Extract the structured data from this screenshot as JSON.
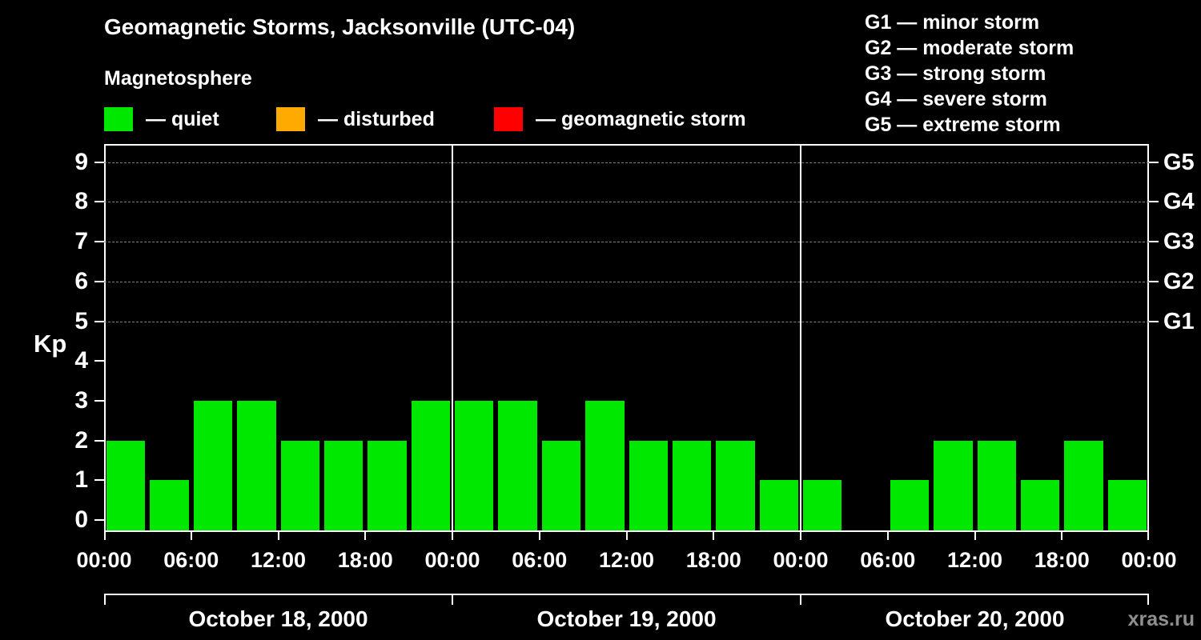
{
  "title": "Geomagnetic Storms, Jacksonville (UTC-04)",
  "legend": {
    "heading": "Magnetosphere",
    "items": [
      {
        "name": "quiet",
        "label": "— quiet",
        "color": "#00e800"
      },
      {
        "name": "disturbed",
        "label": "— disturbed",
        "color": "#ffaa00"
      },
      {
        "name": "storm",
        "label": "— geomagnetic storm",
        "color": "#ff0000"
      }
    ]
  },
  "storm_scale": {
    "items": [
      "G1 — minor storm",
      "G2 — moderate storm",
      "G3 — strong storm",
      "G4 — severe storm",
      "G5 — extreme storm"
    ]
  },
  "watermark": "xras.ru",
  "chart_data": {
    "type": "bar",
    "title": "Geomagnetic Storms, Jacksonville (UTC-04)",
    "ylabel": "Kp",
    "ylim": [
      0,
      9
    ],
    "yticks": [
      0,
      1,
      2,
      3,
      4,
      5,
      6,
      7,
      8,
      9
    ],
    "grid_levels": [
      5,
      6,
      7,
      8,
      9
    ],
    "right_axis": [
      {
        "kp": 9,
        "label": "G5"
      },
      {
        "kp": 8,
        "label": "G4"
      },
      {
        "kp": 7,
        "label": "G3"
      },
      {
        "kp": 6,
        "label": "G2"
      },
      {
        "kp": 5,
        "label": "G1"
      }
    ],
    "x_tick_labels": [
      "00:00",
      "06:00",
      "12:00",
      "18:00",
      "00:00",
      "06:00",
      "12:00",
      "18:00",
      "00:00",
      "06:00",
      "12:00",
      "18:00",
      "00:00"
    ],
    "bar_color": "#00e800",
    "days": [
      {
        "date": "October 18, 2000",
        "values": [
          2,
          1,
          3,
          3,
          2,
          2,
          2,
          3
        ]
      },
      {
        "date": "October 19, 2000",
        "values": [
          3,
          3,
          2,
          3,
          2,
          2,
          2,
          1
        ]
      },
      {
        "date": "October 20, 2000",
        "values": [
          1,
          0,
          1,
          2,
          2,
          1,
          2,
          1
        ]
      }
    ]
  }
}
